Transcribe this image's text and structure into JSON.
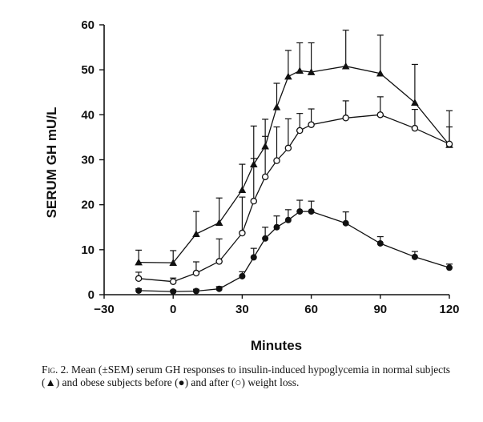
{
  "chart_data": {
    "type": "line",
    "xlabel": "Minutes",
    "ylabel": "SERUM GH mU/L",
    "xlim": [
      -30,
      120
    ],
    "ylim": [
      0,
      60
    ],
    "xticks": [
      "-30",
      "0",
      "30",
      "60",
      "90",
      "120"
    ],
    "yticks": [
      "0",
      "10",
      "20",
      "30",
      "40",
      "50",
      "60"
    ],
    "grid": false,
    "series": [
      {
        "marker": "triangle-filled",
        "x": [
          -15,
          0,
          10,
          20,
          30,
          35,
          40,
          45,
          50,
          55,
          60,
          75,
          90,
          105,
          120
        ],
        "y": [
          7.2,
          7.1,
          13.5,
          16,
          23.3,
          29,
          33,
          41.7,
          48.5,
          49.8,
          49.5,
          50.8,
          49.2,
          42.7,
          33.3
        ],
        "err": [
          2.7,
          2.7,
          5.0,
          5.5,
          5.7,
          8.5,
          6.0,
          5.3,
          5.8,
          6.2,
          6.5,
          8.0,
          8.5,
          8.5,
          7.6
        ]
      },
      {
        "marker": "circle-open",
        "x": [
          -15,
          0,
          10,
          20,
          30,
          35,
          40,
          45,
          50,
          55,
          60,
          75,
          90,
          105,
          120
        ],
        "y": [
          3.6,
          2.9,
          4.8,
          7.4,
          13.7,
          20.8,
          26.2,
          29.8,
          32.6,
          36.5,
          37.8,
          39.3,
          40,
          37,
          33.5
        ],
        "err": [
          1.4,
          0.8,
          2.5,
          5.0,
          8.0,
          9.5,
          9.0,
          7.5,
          6.5,
          3.8,
          3.5,
          3.8,
          4.0,
          4.2,
          3.8
        ]
      },
      {
        "marker": "circle-filled",
        "x": [
          -15,
          0,
          10,
          20,
          30,
          35,
          40,
          45,
          50,
          55,
          60,
          75,
          90,
          105,
          120
        ],
        "y": [
          0.9,
          0.7,
          0.8,
          1.3,
          4.1,
          8.3,
          12.5,
          15,
          16.6,
          18.5,
          18.5,
          15.9,
          11.4,
          8.4,
          6
        ],
        "err": [
          0.4,
          0.3,
          0.4,
          0.5,
          1.0,
          2.0,
          2.5,
          2.5,
          2.3,
          2.5,
          2.3,
          2.5,
          1.5,
          1.2,
          0.8
        ]
      }
    ]
  },
  "caption": {
    "label": "Fig. 2.",
    "text": "Mean (±SEM) serum GH responses to insulin-induced hypoglycemia in normal subjects (▲) and obese subjects before (●) and after (○) weight loss."
  }
}
